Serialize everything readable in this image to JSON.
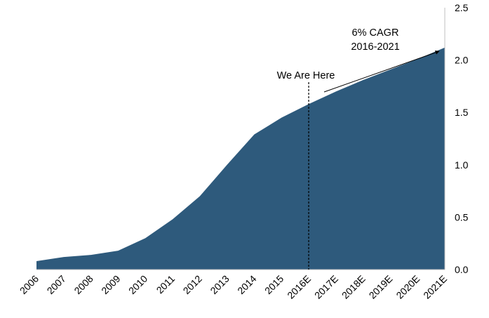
{
  "chart_data": {
    "type": "area",
    "title": "",
    "xlabel": "",
    "ylabel": "",
    "x": [
      "2006",
      "2007",
      "2008",
      "2009",
      "2010",
      "2011",
      "2012",
      "2013",
      "2014",
      "2015",
      "2016E",
      "2017E",
      "2018E",
      "2019E",
      "2020E",
      "2021E"
    ],
    "series": [
      {
        "values": [
          0.08,
          0.12,
          0.14,
          0.18,
          0.3,
          0.48,
          0.7,
          1.0,
          1.29,
          1.45,
          1.58,
          1.7,
          1.81,
          1.91,
          2.01,
          2.12
        ]
      }
    ],
    "ylim": [
      0,
      2.5
    ],
    "yticks": [
      0.0,
      0.5,
      1.0,
      1.5,
      2.0,
      2.5
    ],
    "ytick_labels": [
      "0.0",
      "0.5",
      "1.0",
      "1.5",
      "2.0",
      "2.5"
    ],
    "y_axis_side": "right",
    "grid": false,
    "legend": "none",
    "colors": {
      "area": "#2e5a7c",
      "axis": "#bfbfbf",
      "annotation_line": "#000000"
    },
    "annotations": {
      "marker_label": "We Are Here",
      "marker_at": "2016E",
      "cagr_line1": "6% CAGR",
      "cagr_line2": "2016-2021"
    }
  }
}
